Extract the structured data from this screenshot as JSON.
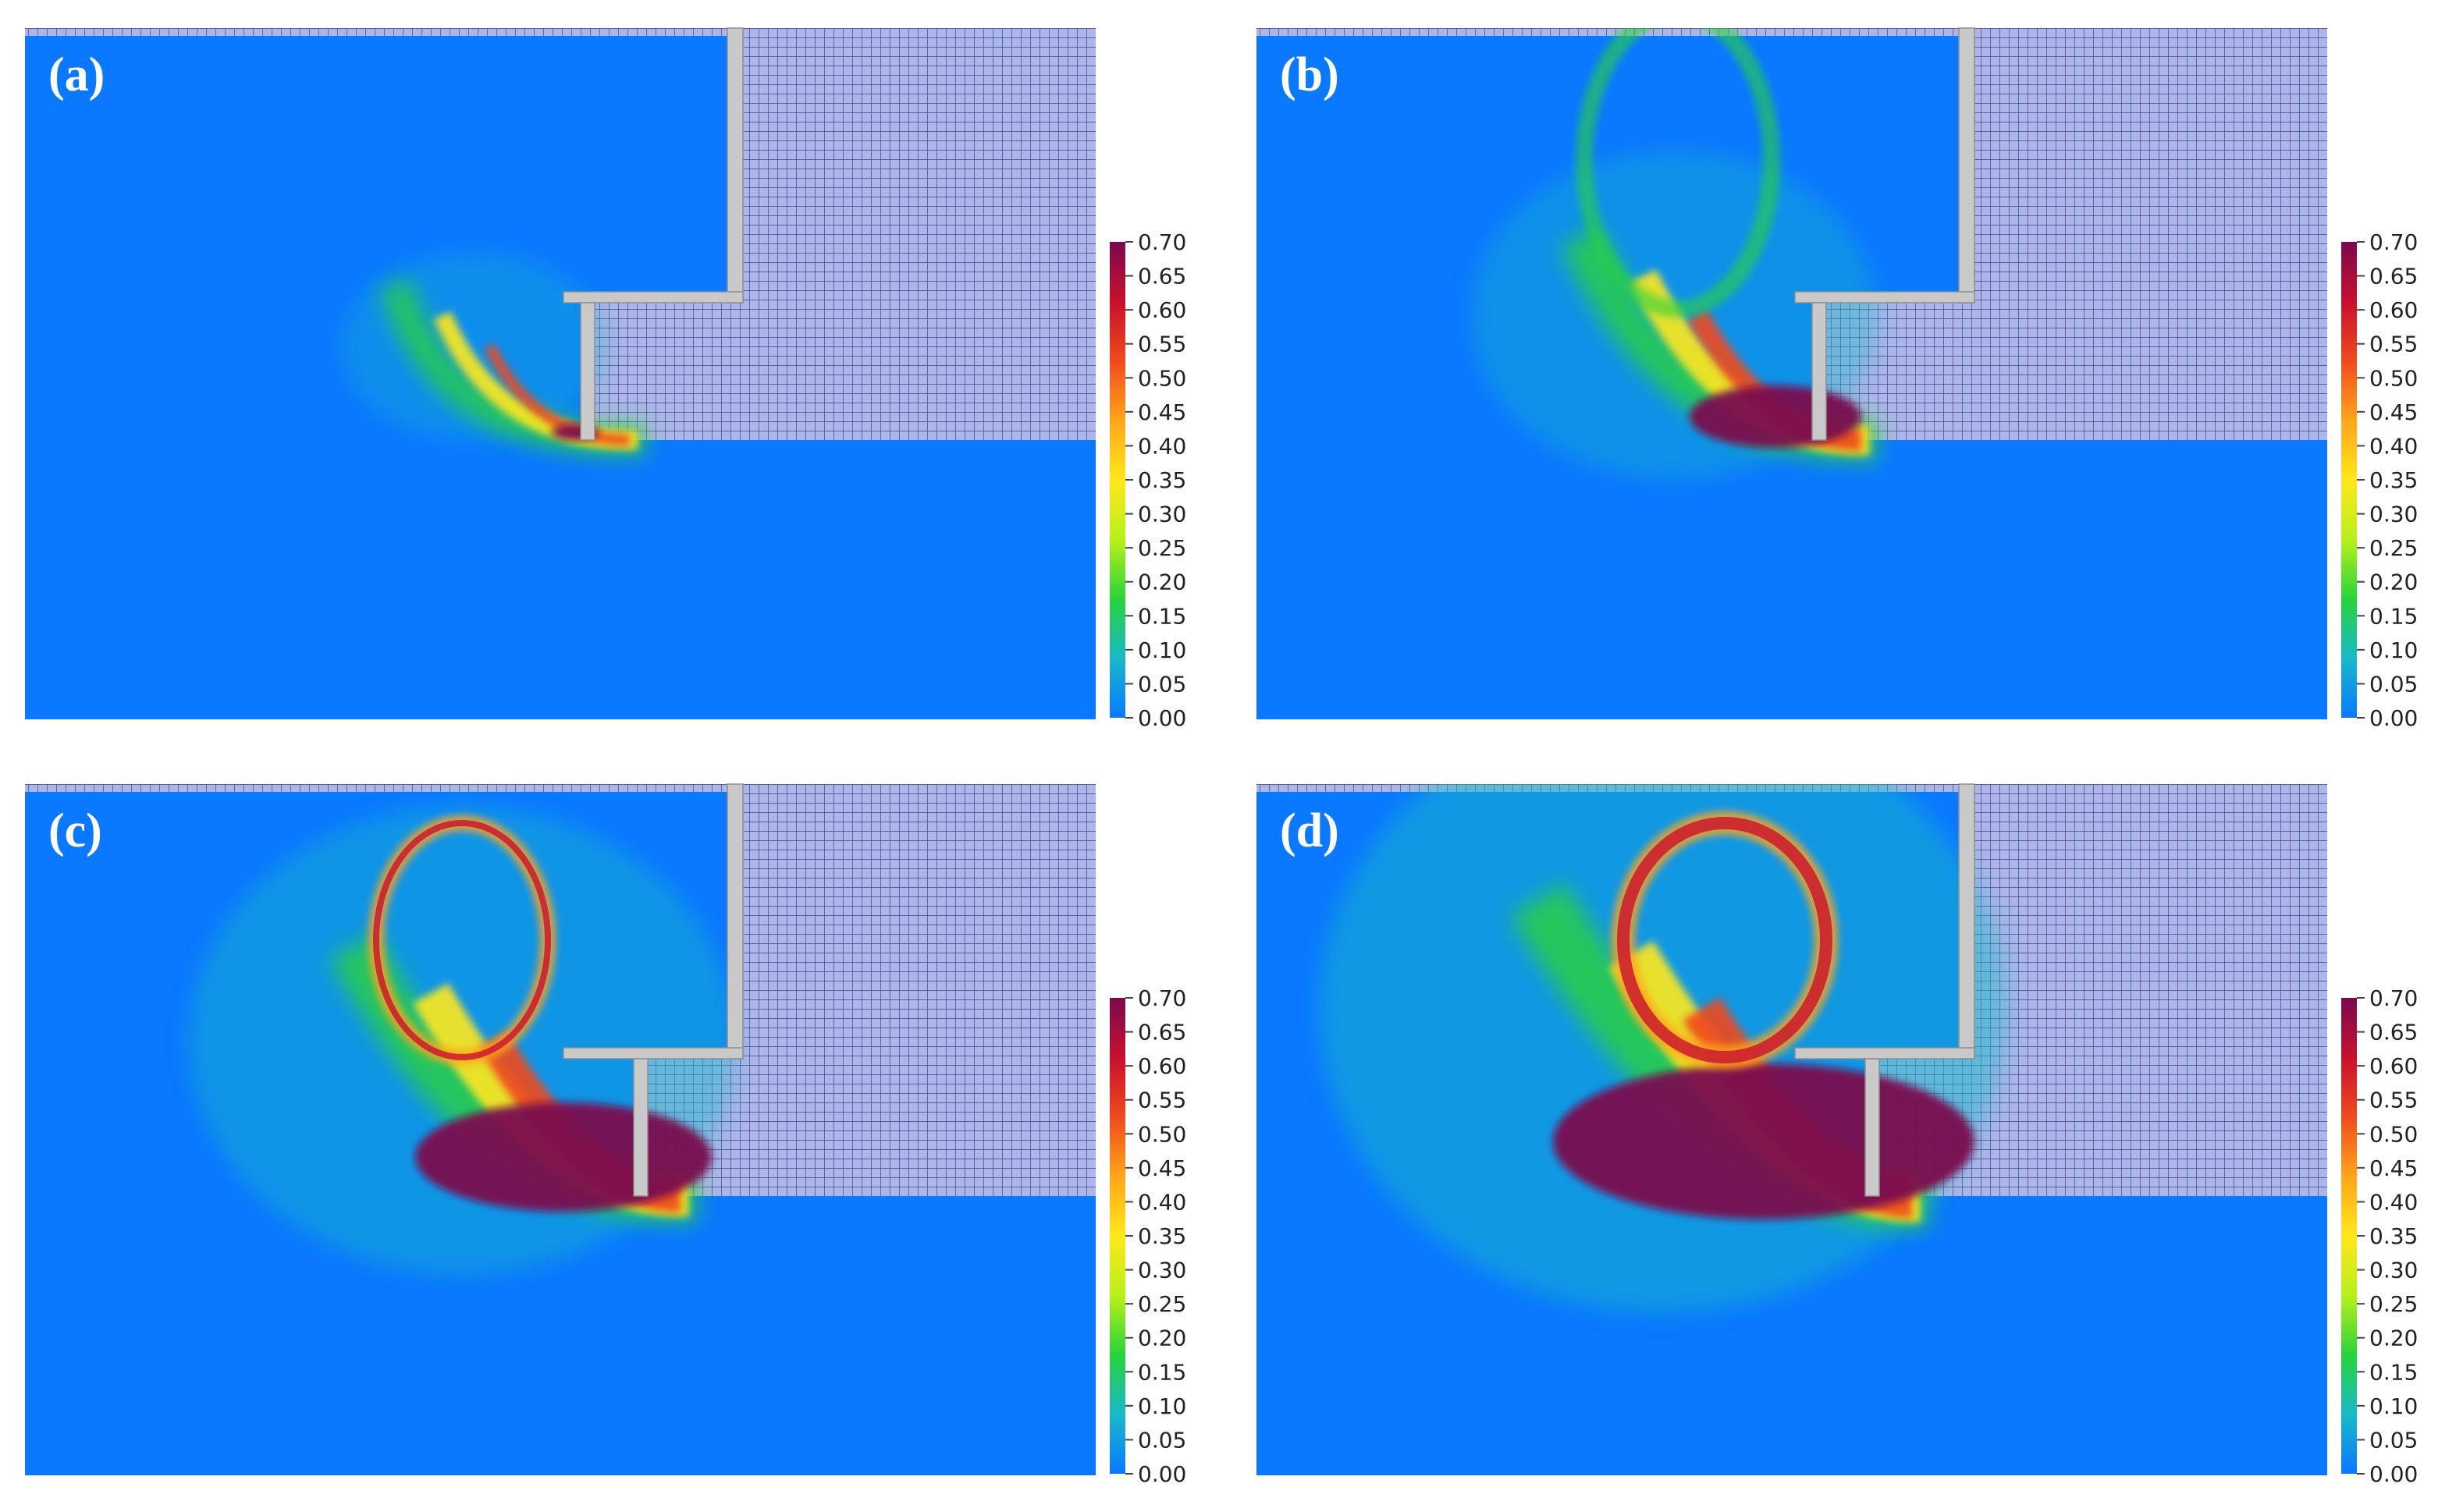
{
  "figure": {
    "panels": [
      {
        "label": "(a)",
        "stage": 0
      },
      {
        "label": "(b)",
        "stage": 1
      },
      {
        "label": "(c)",
        "stage": 2
      },
      {
        "label": "(d)",
        "stage": 3
      }
    ],
    "colorbar": {
      "min": 0.0,
      "max": 0.7,
      "ticks": [
        "0.70",
        "0.65",
        "0.60",
        "0.55",
        "0.50",
        "0.45",
        "0.40",
        "0.35",
        "0.30",
        "0.25",
        "0.20",
        "0.15",
        "0.10",
        "0.05",
        "0.00"
      ],
      "colors": [
        "#7a0a4f",
        "#c8102e",
        "#f04a1e",
        "#ffa51a",
        "#ffe81a",
        "#b7f01a",
        "#29d33a",
        "#19b9c9",
        "#0a78ff"
      ]
    },
    "colors": {
      "background_field": "#0a78ff",
      "soil_mesh": "#aab7e8",
      "mesh_lines": "#4a3f8a",
      "structure": "#c9c9c9"
    }
  }
}
